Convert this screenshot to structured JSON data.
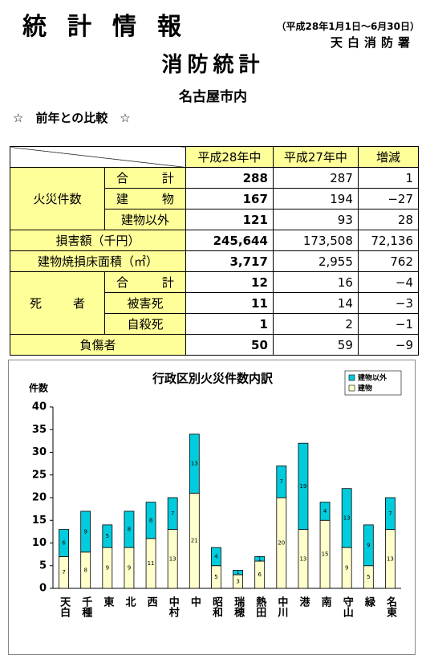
{
  "header": {
    "title": "統計情報",
    "period": "（平成28年1月1日～6月30日）",
    "org": "天白消防署",
    "subtitle": "消防統計",
    "area": "名古屋市内",
    "section": "☆　前年との比較　☆"
  },
  "table": {
    "columns": [
      "平成28年中",
      "平成27年中",
      "増減"
    ],
    "groups": [
      {
        "label": "火災件数",
        "rows": [
          {
            "label": "合計",
            "cells": [
              "288",
              "287",
              "1"
            ]
          },
          {
            "label": "建物",
            "cells": [
              "167",
              "194",
              "−27"
            ]
          },
          {
            "label": "建物以外",
            "cells": [
              "121",
              "93",
              "28"
            ]
          }
        ]
      },
      {
        "label": "損害額（千円）",
        "cells": [
          "245,644",
          "173,508",
          "72,136"
        ]
      },
      {
        "label": "建物焼損床面積（㎡）",
        "cells": [
          "3,717",
          "2,955",
          "762"
        ]
      },
      {
        "label": "死者",
        "rows": [
          {
            "label": "合計",
            "cells": [
              "12",
              "16",
              "−4"
            ]
          },
          {
            "label": "被害死",
            "cells": [
              "11",
              "14",
              "−3"
            ]
          },
          {
            "label": "自殺死",
            "cells": [
              "1",
              "2",
              "−1"
            ]
          }
        ]
      },
      {
        "label": "負傷者",
        "cells": [
          "50",
          "59",
          "−9"
        ]
      }
    ]
  },
  "chart_data": {
    "type": "bar",
    "stacked": true,
    "title": "行政区別火災件数内訳",
    "y_label": "件数",
    "categories": [
      "天白",
      "千種",
      "東",
      "北",
      "西",
      "中村",
      "中",
      "昭和",
      "瑞穂",
      "熱田",
      "中川",
      "港",
      "南",
      "守山",
      "緑",
      "名東"
    ],
    "series": [
      {
        "name": "建物",
        "color": "#ffffcc",
        "values": [
          7,
          8,
          9,
          9,
          11,
          13,
          21,
          5,
          3,
          6,
          20,
          13,
          15,
          9,
          5,
          13
        ]
      },
      {
        "name": "建物以外",
        "color": "#00ccdd",
        "values": [
          6,
          9,
          5,
          8,
          8,
          7,
          13,
          4,
          1,
          1,
          7,
          19,
          4,
          13,
          9,
          7
        ]
      }
    ],
    "ylim": [
      0,
      40
    ],
    "yticks": [
      0,
      5,
      10,
      15,
      20,
      25,
      30,
      35,
      40
    ],
    "grid": false,
    "legend": "top-right",
    "data_labels": true
  }
}
